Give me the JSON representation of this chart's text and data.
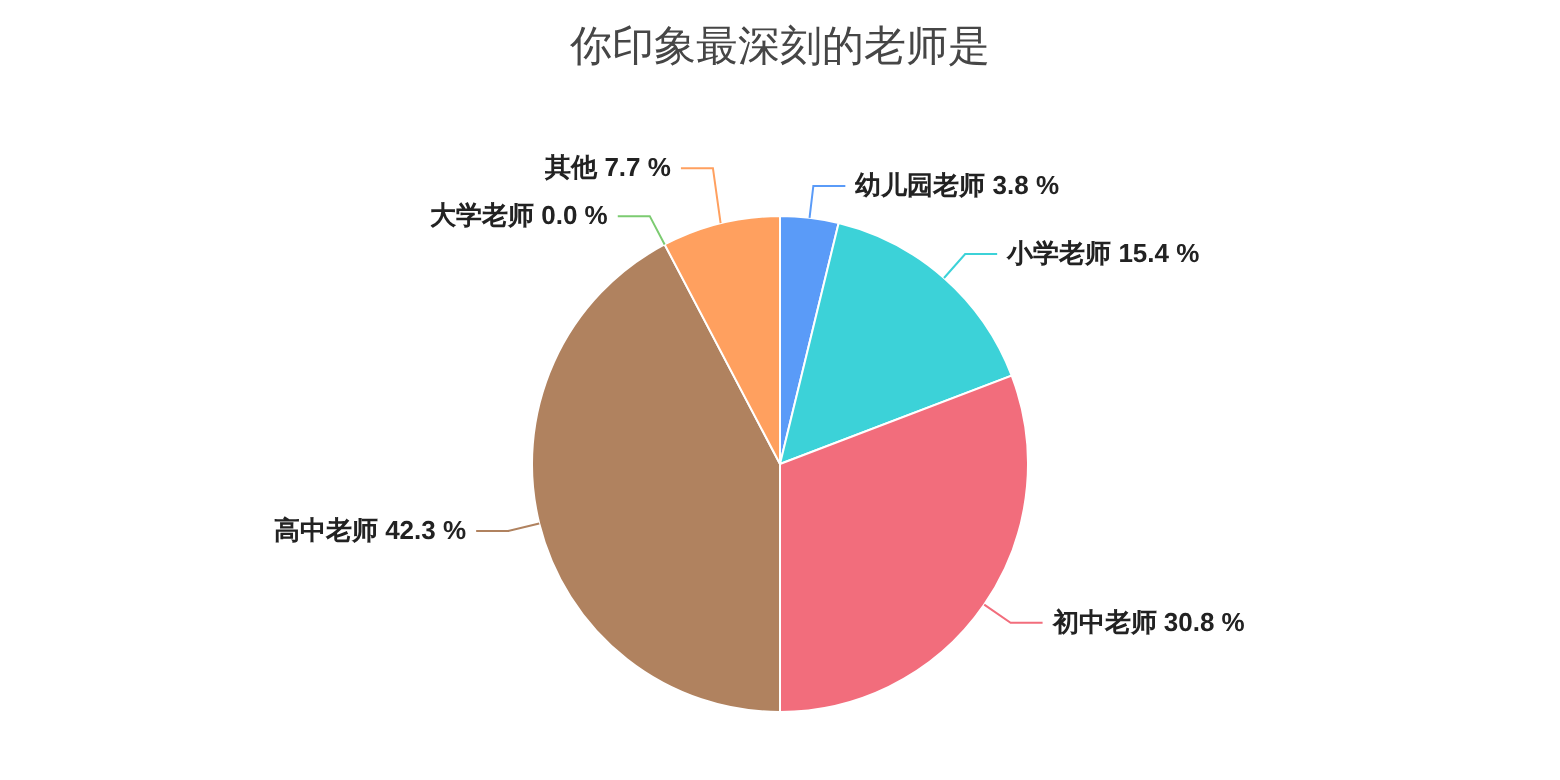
{
  "chart_data": {
    "type": "pie",
    "title": "你印象最深刻的老师是",
    "categories": [
      "幼儿园老师",
      "小学老师",
      "初中老师",
      "高中老师",
      "大学老师",
      "其他"
    ],
    "values": [
      3.8,
      15.4,
      30.8,
      42.3,
      0.0,
      7.7
    ],
    "value_labels": [
      "3.8 %",
      "15.4 %",
      "30.8 %",
      "42.3 %",
      "0.0 %",
      "7.7 %"
    ],
    "colors": [
      "#5a9bf8",
      "#3cd2d8",
      "#f26d7c",
      "#b0825f",
      "#7ccb71",
      "#ffa05f"
    ]
  }
}
